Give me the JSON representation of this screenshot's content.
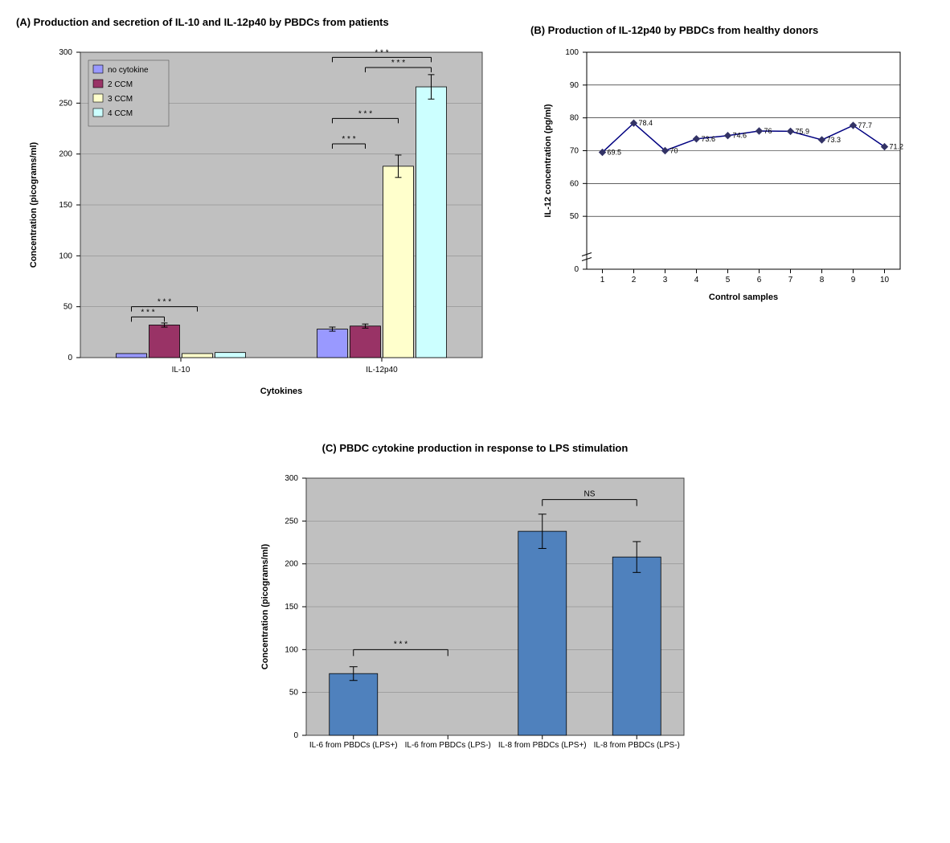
{
  "chartA": {
    "type": "bar",
    "title": "(A) Production and secretion of IL-10 and IL-12p40 by PBDCs from patients",
    "ylabel": "Concentration (picograms/ml)",
    "xlabel": "Cytokines",
    "ylim": [
      0,
      300
    ],
    "ytick_step": 50,
    "groups": [
      "IL-10",
      "IL-12p40"
    ],
    "series": [
      {
        "name": "no cytokine",
        "color": "#9999ff",
        "values": [
          4,
          28
        ],
        "errors": [
          0,
          2
        ]
      },
      {
        "name": "2 CCM",
        "color": "#993366",
        "values": [
          32,
          31
        ],
        "errors": [
          2,
          2
        ]
      },
      {
        "name": "3 CCM",
        "color": "#ffffcc",
        "values": [
          4,
          188
        ],
        "errors": [
          0,
          11
        ]
      },
      {
        "name": "4 CCM",
        "color": "#ccffff",
        "values": [
          5,
          266
        ],
        "errors": [
          0,
          12
        ]
      }
    ],
    "plot_bg": "#c0c0c0",
    "grid_color": "#808080",
    "sig_label": "* * *",
    "sig_pairs_il10": [
      [
        0,
        1
      ],
      [
        0,
        2
      ]
    ],
    "sig_pairs_il12": [
      [
        0,
        1
      ],
      [
        0,
        2
      ],
      [
        0,
        3
      ],
      [
        1,
        3
      ]
    ]
  },
  "chartB": {
    "type": "line",
    "title": "(B) Production of IL-12p40 by PBDCs from healthy donors",
    "ylabel": "IL-12 concentration (pg/ml)",
    "xlabel": "Control samples",
    "ylim": [
      40,
      100
    ],
    "ytick_step": 10,
    "break_at": 40,
    "x": [
      1,
      2,
      3,
      4,
      5,
      6,
      7,
      8,
      9,
      10
    ],
    "values": [
      69.5,
      78.4,
      70,
      73.6,
      74.6,
      76,
      75.9,
      73.3,
      77.7,
      71.2
    ],
    "marker_color": "#333366",
    "line_color": "#000080",
    "plot_bg": "#ffffff",
    "grid_color": "#000000"
  },
  "chartC": {
    "type": "bar",
    "title": "(C)  PBDC cytokine production in response to LPS stimulation",
    "ylabel": "Concentration (picograms/ml)",
    "ylim": [
      0,
      300
    ],
    "ytick_step": 50,
    "categories": [
      "IL-6 from PBDCs (LPS+)",
      "IL-6 from PBDCs (LPS-)",
      "IL-8 from PBDCs (LPS+)",
      "IL-8 from PBDCs (LPS-)"
    ],
    "values": [
      72,
      0,
      238,
      208
    ],
    "errors": [
      8,
      0,
      20,
      18
    ],
    "bar_color": "#4f81bd",
    "plot_bg": "#c0c0c0",
    "grid_color": "#808080",
    "sig_label_a": "* * *",
    "sig_label_b": "NS"
  }
}
